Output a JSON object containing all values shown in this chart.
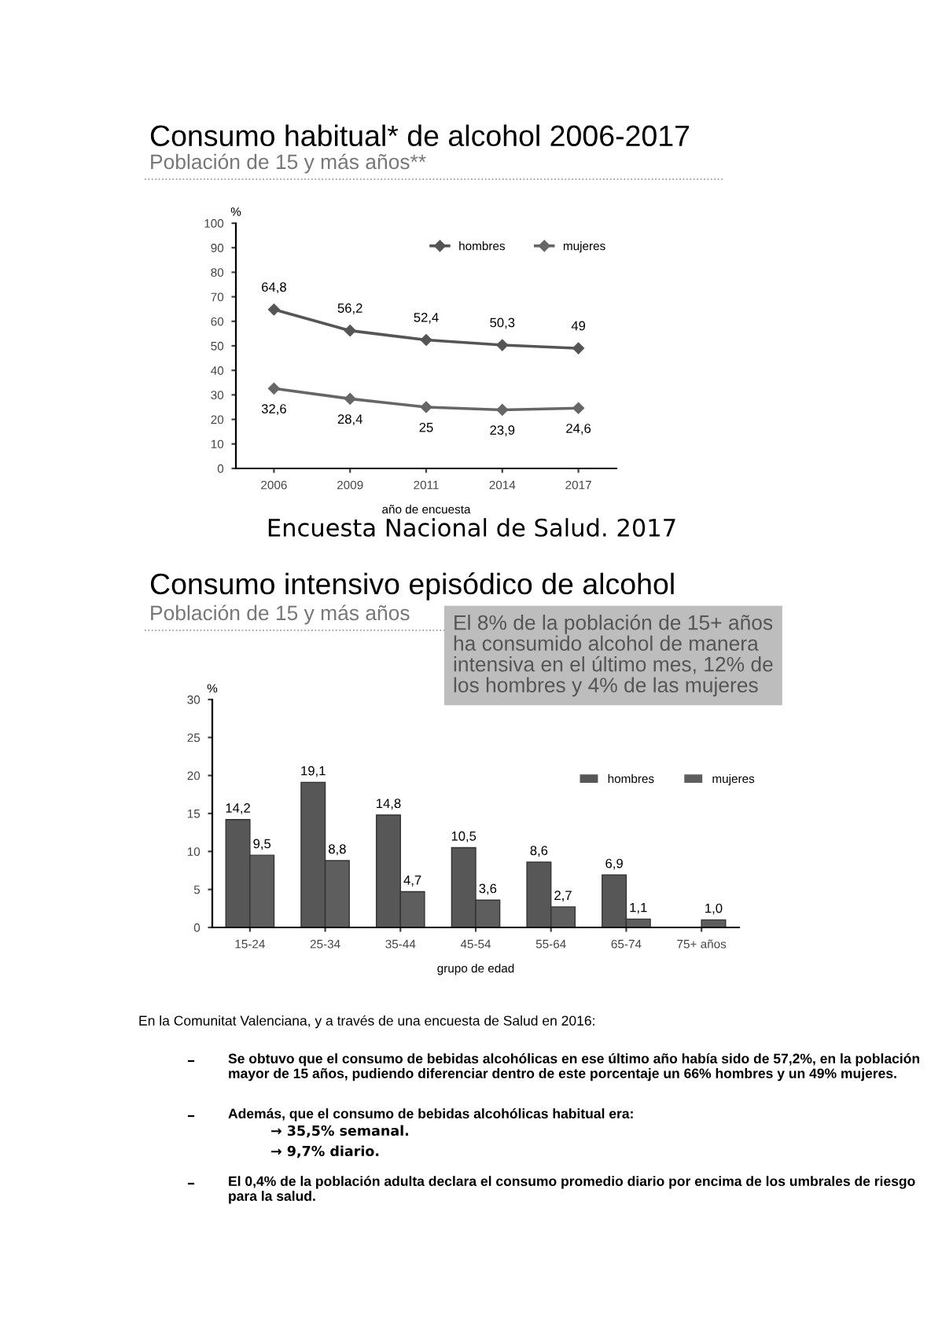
{
  "chart_data": [
    {
      "type": "line",
      "title": "Consumo habitual* de alcohol 2006-2017",
      "subtitle": "Población de 15 y más años**",
      "xlabel": "año de encuesta",
      "ylabel": "%",
      "categories": [
        "2006",
        "2009",
        "2011",
        "2014",
        "2017"
      ],
      "series": [
        {
          "name": "hombres",
          "color": "#555555",
          "values": [
            64.8,
            56.2,
            52.4,
            50.3,
            49
          ],
          "value_labels": [
            "64,8",
            "56,2",
            "52,4",
            "50,3",
            "49"
          ]
        },
        {
          "name": "mujeres",
          "color": "#666666",
          "values": [
            32.6,
            28.4,
            25,
            23.9,
            24.6
          ],
          "value_labels": [
            "32,6",
            "28,4",
            "25",
            "23,9",
            "24,6"
          ]
        }
      ],
      "ylim": [
        0,
        100
      ],
      "yticks": [
        0,
        10,
        20,
        30,
        40,
        50,
        60,
        70,
        80,
        90,
        100
      ],
      "marker": "diamond",
      "line_style": "solid",
      "grid": false,
      "legend": "top right"
    },
    {
      "type": "bar",
      "title": "Consumo intensivo episódico de alcohol",
      "subtitle": "Población de 15 y más años",
      "xlabel": "grupo de edad",
      "ylabel": "%",
      "categories": [
        "15-24",
        "25-34",
        "35-44",
        "45-54",
        "55-64",
        "65-74",
        "75+ años"
      ],
      "series": [
        {
          "name": "hombres",
          "color": "#575757",
          "values": [
            14.2,
            19.1,
            14.8,
            10.5,
            8.6,
            6.9,
            null
          ],
          "value_labels": [
            "14,2",
            "19,1",
            "14,8",
            "10,5",
            "8,6",
            "6,9",
            null
          ]
        },
        {
          "name": "mujeres",
          "color": "#5e5e5e",
          "values": [
            9.5,
            8.8,
            4.7,
            3.6,
            2.7,
            1.1,
            1.0
          ],
          "value_labels": [
            "9,5",
            "8,8",
            "4,7",
            "3,6",
            "2,7",
            "1,1",
            "1,0"
          ]
        }
      ],
      "ylim": [
        0,
        30
      ],
      "yticks": [
        0,
        5,
        10,
        15,
        20,
        25,
        30
      ],
      "grid": false,
      "legend": "top right",
      "annotations": [
        "Encuesta Nacional de Salud. 2017",
        "El 8% de la población de 15+ años\nha consumido alcohol de manera\nintensiva en el último mes, 12% de\nlos hombres y 4% de las mujeres",
        "En la Comunitat Valenciana, y a través de una encuesta de Salud en 2016:",
        "Se obtuvo que el consumo de bebidas alcohólicas en ese último año había sido de 57,2%, en la población mayor de 15 años, pudiendo diferenciar dentro de este porcentaje un 66% hombres y un 49% mujeres.",
        "Además, que el consumo de bebidas alcohólicas habitual era:",
        "→ 35,5% semanal.",
        "→ 9,7% diario.",
        "El 0,4% de la población adulta declara el consumo promedio diario por encima de los umbrales de riesgo para la salud."
      ]
    }
  ]
}
